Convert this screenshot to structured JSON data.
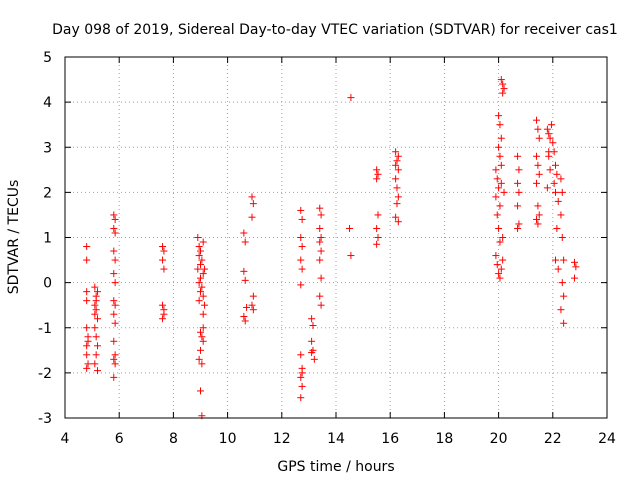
{
  "chart_data": {
    "type": "scatter",
    "title": "Day 098 of 2019, Sidereal Day-to-day VTEC variation (SDTVAR) for receiver cas1",
    "xlabel": "GPS time / hours",
    "ylabel": "SDTVAR / TECUs",
    "xlim": [
      4,
      24
    ],
    "ylim": [
      -3,
      5
    ],
    "xticks": [
      "4",
      "6",
      "8",
      "10",
      "12",
      "14",
      "16",
      "18",
      "20",
      "22",
      "24"
    ],
    "yticks": [
      "-3",
      "-2",
      "-1",
      "0",
      "1",
      "2",
      "3",
      "4",
      "5"
    ],
    "grid": true,
    "marker": "+",
    "color": "#ff0000",
    "series": [
      {
        "name": "SDTVAR",
        "points": [
          [
            4.8,
            0.8
          ],
          [
            4.8,
            0.5
          ],
          [
            4.8,
            -0.2
          ],
          [
            4.8,
            -0.4
          ],
          [
            4.8,
            -1.0
          ],
          [
            4.85,
            -1.3
          ],
          [
            4.8,
            -1.6
          ],
          [
            4.85,
            -1.8
          ],
          [
            4.8,
            -1.9
          ],
          [
            4.85,
            -1.2
          ],
          [
            4.8,
            -1.4
          ],
          [
            5.1,
            -0.1
          ],
          [
            5.15,
            -0.3
          ],
          [
            5.1,
            -0.5
          ],
          [
            5.15,
            -0.6
          ],
          [
            5.2,
            -0.8
          ],
          [
            5.1,
            -1.0
          ],
          [
            5.15,
            -1.2
          ],
          [
            5.2,
            -1.4
          ],
          [
            5.15,
            -1.6
          ],
          [
            5.1,
            -1.8
          ],
          [
            5.2,
            -1.95
          ],
          [
            5.15,
            -0.4
          ],
          [
            5.2,
            -0.2
          ],
          [
            5.1,
            -0.7
          ],
          [
            5.8,
            1.5
          ],
          [
            5.85,
            1.4
          ],
          [
            5.8,
            1.2
          ],
          [
            5.85,
            1.1
          ],
          [
            5.8,
            0.7
          ],
          [
            5.85,
            0.5
          ],
          [
            5.8,
            0.2
          ],
          [
            5.85,
            0.0
          ],
          [
            5.8,
            -0.4
          ],
          [
            5.85,
            -0.5
          ],
          [
            5.8,
            -0.7
          ],
          [
            5.85,
            -0.9
          ],
          [
            5.8,
            -1.3
          ],
          [
            5.85,
            -1.6
          ],
          [
            5.8,
            -1.7
          ],
          [
            5.85,
            -1.8
          ],
          [
            5.8,
            -2.1
          ],
          [
            7.6,
            0.8
          ],
          [
            7.65,
            0.7
          ],
          [
            7.6,
            0.5
          ],
          [
            7.65,
            0.3
          ],
          [
            7.6,
            -0.5
          ],
          [
            7.65,
            -0.7
          ],
          [
            7.6,
            -0.8
          ],
          [
            7.65,
            -0.6
          ],
          [
            8.9,
            1.0
          ],
          [
            8.95,
            0.8
          ],
          [
            9.0,
            0.7
          ],
          [
            8.95,
            0.6
          ],
          [
            9.05,
            0.5
          ],
          [
            9.0,
            0.4
          ],
          [
            8.9,
            0.3
          ],
          [
            9.1,
            0.2
          ],
          [
            9.0,
            0.1
          ],
          [
            8.95,
            0.0
          ],
          [
            9.05,
            -0.1
          ],
          [
            9.0,
            -0.2
          ],
          [
            9.1,
            -0.3
          ],
          [
            8.95,
            -0.4
          ],
          [
            9.0,
            -1.1
          ],
          [
            9.05,
            -1.2
          ],
          [
            9.1,
            -1.3
          ],
          [
            9.0,
            -1.5
          ],
          [
            8.95,
            -1.7
          ],
          [
            9.05,
            -1.8
          ],
          [
            9.1,
            -1.0
          ],
          [
            9.0,
            -2.4
          ],
          [
            9.05,
            -2.95
          ],
          [
            9.1,
            -0.7
          ],
          [
            9.15,
            0.3
          ],
          [
            9.15,
            -0.5
          ],
          [
            9.1,
            0.9
          ],
          [
            10.6,
            1.1
          ],
          [
            10.65,
            0.9
          ],
          [
            10.6,
            0.25
          ],
          [
            10.65,
            0.05
          ],
          [
            10.6,
            -0.75
          ],
          [
            10.65,
            -0.85
          ],
          [
            10.7,
            -0.55
          ],
          [
            10.9,
            1.9
          ],
          [
            10.95,
            1.75
          ],
          [
            10.9,
            1.45
          ],
          [
            10.95,
            -0.3
          ],
          [
            10.9,
            -0.5
          ],
          [
            10.95,
            -0.6
          ],
          [
            12.7,
            1.6
          ],
          [
            12.75,
            1.4
          ],
          [
            12.7,
            1.0
          ],
          [
            12.75,
            0.8
          ],
          [
            12.7,
            0.5
          ],
          [
            12.75,
            0.3
          ],
          [
            12.7,
            -0.05
          ],
          [
            12.7,
            -1.6
          ],
          [
            12.75,
            -1.9
          ],
          [
            12.7,
            -2.1
          ],
          [
            12.75,
            -2.3
          ],
          [
            12.7,
            -2.55
          ],
          [
            12.75,
            -2.0
          ],
          [
            13.1,
            -0.8
          ],
          [
            13.15,
            -0.95
          ],
          [
            13.1,
            -1.3
          ],
          [
            13.15,
            -1.5
          ],
          [
            13.2,
            -1.7
          ],
          [
            13.1,
            -1.55
          ],
          [
            13.4,
            1.65
          ],
          [
            13.45,
            1.5
          ],
          [
            13.4,
            1.2
          ],
          [
            13.45,
            1.0
          ],
          [
            13.4,
            0.9
          ],
          [
            13.45,
            0.7
          ],
          [
            13.4,
            0.5
          ],
          [
            13.45,
            0.1
          ],
          [
            13.4,
            -0.3
          ],
          [
            13.45,
            -0.5
          ],
          [
            14.55,
            4.1
          ],
          [
            14.5,
            1.2
          ],
          [
            14.55,
            0.6
          ],
          [
            15.5,
            2.5
          ],
          [
            15.55,
            2.4
          ],
          [
            15.5,
            2.3
          ],
          [
            15.55,
            1.5
          ],
          [
            15.5,
            1.2
          ],
          [
            15.55,
            1.0
          ],
          [
            15.5,
            0.85
          ],
          [
            16.2,
            2.9
          ],
          [
            16.25,
            2.7
          ],
          [
            16.3,
            2.5
          ],
          [
            16.2,
            2.3
          ],
          [
            16.25,
            2.1
          ],
          [
            16.3,
            1.9
          ],
          [
            16.25,
            1.75
          ],
          [
            16.2,
            1.45
          ],
          [
            16.3,
            1.35
          ],
          [
            16.3,
            2.8
          ],
          [
            16.2,
            2.6
          ],
          [
            19.9,
            2.5
          ],
          [
            19.95,
            2.3
          ],
          [
            20.0,
            2.1
          ],
          [
            19.9,
            1.9
          ],
          [
            20.05,
            1.7
          ],
          [
            19.95,
            1.5
          ],
          [
            20.0,
            1.2
          ],
          [
            19.9,
            0.6
          ],
          [
            19.95,
            0.4
          ],
          [
            20.0,
            0.2
          ],
          [
            20.05,
            0.1
          ],
          [
            20.0,
            3.7
          ],
          [
            20.05,
            3.5
          ],
          [
            20.1,
            3.2
          ],
          [
            20.0,
            3.0
          ],
          [
            20.05,
            2.8
          ],
          [
            20.1,
            2.6
          ],
          [
            20.15,
            0.5
          ],
          [
            20.1,
            0.3
          ],
          [
            20.05,
            0.9
          ],
          [
            20.1,
            4.5
          ],
          [
            20.15,
            4.4
          ],
          [
            20.2,
            4.3
          ],
          [
            20.15,
            4.2
          ],
          [
            20.1,
            2.2
          ],
          [
            20.2,
            2.0
          ],
          [
            20.15,
            1.0
          ],
          [
            20.7,
            2.8
          ],
          [
            20.75,
            2.5
          ],
          [
            20.7,
            2.2
          ],
          [
            20.75,
            2.0
          ],
          [
            20.7,
            1.7
          ],
          [
            20.75,
            1.3
          ],
          [
            20.7,
            1.2
          ],
          [
            21.4,
            3.6
          ],
          [
            21.45,
            3.4
          ],
          [
            21.5,
            3.2
          ],
          [
            21.4,
            2.8
          ],
          [
            21.45,
            2.6
          ],
          [
            21.5,
            2.4
          ],
          [
            21.4,
            2.2
          ],
          [
            21.45,
            1.7
          ],
          [
            21.5,
            1.5
          ],
          [
            21.4,
            1.4
          ],
          [
            21.45,
            1.3
          ],
          [
            21.8,
            3.4
          ],
          [
            21.85,
            3.3
          ],
          [
            21.9,
            3.2
          ],
          [
            21.95,
            3.5
          ],
          [
            21.85,
            2.9
          ],
          [
            21.9,
            2.5
          ],
          [
            21.8,
            2.1
          ],
          [
            21.85,
            2.8
          ],
          [
            22.0,
            3.1
          ],
          [
            22.05,
            2.9
          ],
          [
            22.1,
            2.6
          ],
          [
            22.15,
            2.4
          ],
          [
            22.05,
            2.2
          ],
          [
            22.1,
            2.0
          ],
          [
            22.2,
            1.8
          ],
          [
            22.15,
            1.2
          ],
          [
            22.1,
            0.5
          ],
          [
            22.2,
            0.3
          ],
          [
            22.3,
            2.3
          ],
          [
            22.35,
            2.0
          ],
          [
            22.3,
            1.5
          ],
          [
            22.35,
            1.0
          ],
          [
            22.4,
            0.5
          ],
          [
            22.35,
            0.0
          ],
          [
            22.4,
            -0.3
          ],
          [
            22.3,
            -0.6
          ],
          [
            22.4,
            -0.9
          ],
          [
            22.8,
            0.45
          ],
          [
            22.85,
            0.35
          ],
          [
            22.8,
            0.1
          ]
        ]
      }
    ]
  }
}
